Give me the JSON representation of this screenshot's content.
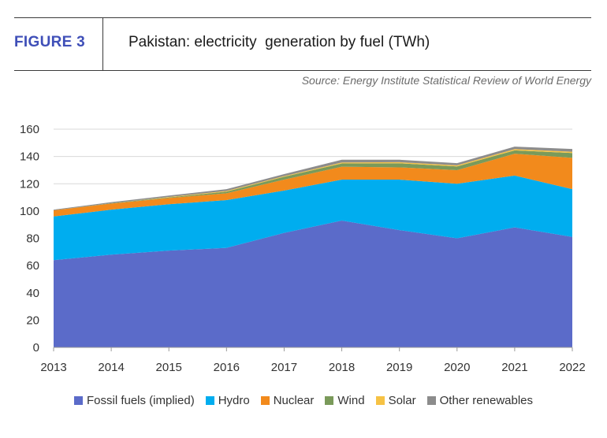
{
  "figure_label": "FIGURE 3",
  "title": "Pakistan: electricity  generation by fuel (TWh)",
  "source": "Source: Energy Institute Statistical Review of World Energy",
  "chart_data": {
    "type": "area",
    "stacked": true,
    "x": [
      2013,
      2014,
      2015,
      2016,
      2017,
      2018,
      2019,
      2020,
      2021,
      2022
    ],
    "ylim": [
      0,
      160
    ],
    "yticks": [
      0,
      20,
      40,
      60,
      80,
      100,
      120,
      140,
      160
    ],
    "grid": true,
    "legend_position": "bottom",
    "series": [
      {
        "name": "Fossil fuels (implied)",
        "color": "#5b6bc9",
        "values": [
          64,
          68,
          71,
          73,
          84,
          93,
          86,
          80,
          88,
          81
        ]
      },
      {
        "name": "Hydro",
        "color": "#00adef",
        "values": [
          32,
          33,
          34,
          35,
          31,
          30,
          37,
          40,
          38,
          35
        ]
      },
      {
        "name": "Nuclear",
        "color": "#f28a1c",
        "values": [
          4.5,
          4.5,
          4.5,
          5,
          8,
          9.5,
          9,
          10,
          16,
          23
        ]
      },
      {
        "name": "Wind",
        "color": "#7a9a5a",
        "values": [
          0,
          0.3,
          0.5,
          1.2,
          2.1,
          2.4,
          3.0,
          2.7,
          2.5,
          3.5
        ]
      },
      {
        "name": "Solar",
        "color": "#f6c244",
        "values": [
          0,
          0,
          0.3,
          0.5,
          0.5,
          0.7,
          0.8,
          0.8,
          0.9,
          1.0
        ]
      },
      {
        "name": "Other renewables",
        "color": "#8c8c8c",
        "values": [
          0.5,
          0.7,
          1.0,
          1.3,
          1.5,
          2.0,
          1.8,
          1.6,
          1.8,
          2.0
        ]
      }
    ]
  }
}
